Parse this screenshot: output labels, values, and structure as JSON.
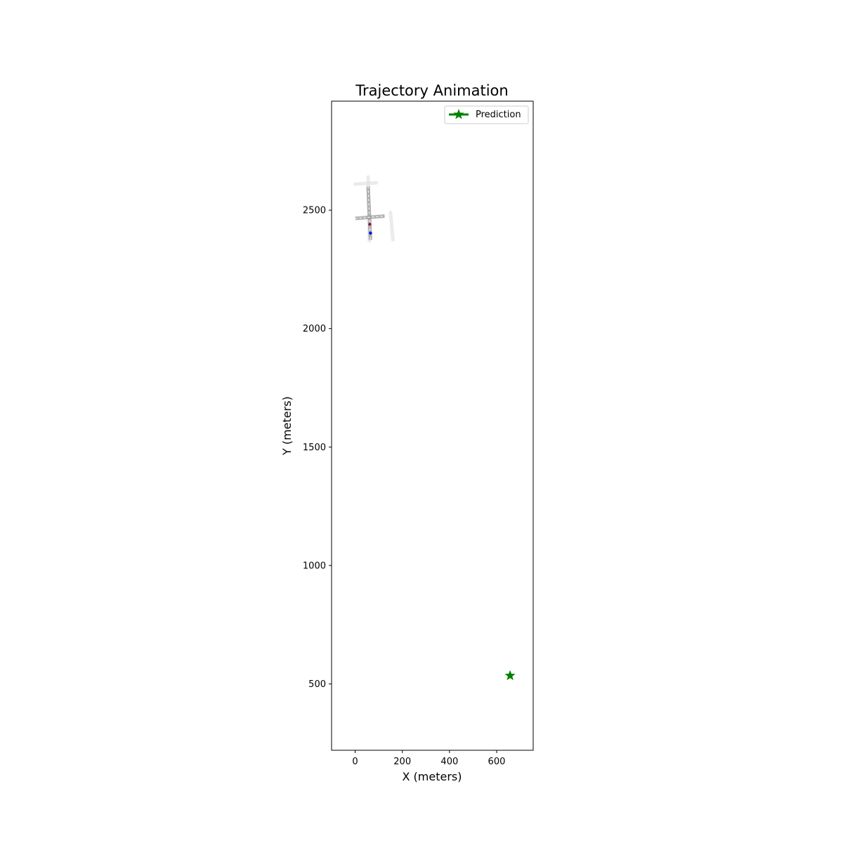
{
  "chart_data": {
    "type": "scatter",
    "title": "Trajectory Animation",
    "xlabel": "X (meters)",
    "ylabel": "Y (meters)",
    "xlim": [
      -100,
      755
    ],
    "ylim": [
      220,
      2960
    ],
    "xticks": [
      0,
      200,
      400,
      600
    ],
    "yticks": [
      500,
      1000,
      1500,
      2000,
      2500
    ],
    "grid": false,
    "legend": {
      "placement": "top-right",
      "entries": [
        {
          "label": "Prediction",
          "color": "#008000",
          "marker": "star"
        }
      ]
    },
    "road_segments": [
      {
        "points": [
          [
            55,
            2640
          ],
          [
            60,
            2370
          ]
        ],
        "color": "#dddddd"
      },
      {
        "points": [
          [
            0,
            2610
          ],
          [
            90,
            2615
          ]
        ],
        "color": "#dddddd"
      },
      {
        "points": [
          [
            150,
            2490
          ],
          [
            160,
            2375
          ]
        ],
        "color": "#dddddd"
      },
      {
        "points": [
          [
            55,
            2600
          ],
          [
            65,
            2375
          ]
        ],
        "color": "#9a9a9a",
        "dashed": true
      },
      {
        "points": [
          [
            0,
            2465
          ],
          [
            125,
            2475
          ]
        ],
        "color": "#9a9a9a",
        "dashed": true
      }
    ],
    "series": [
      {
        "name": "Prediction",
        "color": "#008000",
        "marker": "star",
        "points": [
          [
            657,
            535
          ]
        ]
      }
    ],
    "other_points": [
      {
        "x": 62,
        "y": 2440,
        "color": "#8b1a4a"
      },
      {
        "x": 65,
        "y": 2403,
        "color": "#0000ff"
      }
    ]
  }
}
